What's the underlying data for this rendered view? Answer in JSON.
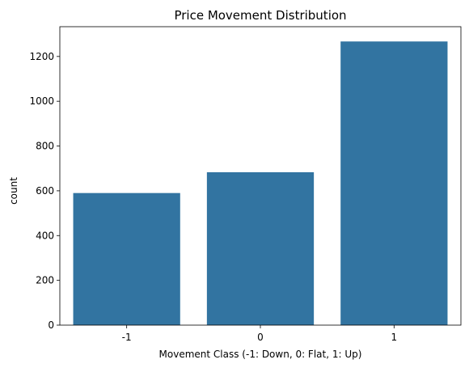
{
  "chart_data": {
    "type": "bar",
    "title": "Price Movement Distribution",
    "xlabel": "Movement Class (-1: Down, 0: Flat, 1: Up)",
    "ylabel": "count",
    "categories": [
      "-1",
      "0",
      "1"
    ],
    "values": [
      590,
      683,
      1267
    ],
    "ylim": [
      0,
      1333
    ],
    "yticks": [
      0,
      200,
      400,
      600,
      800,
      1000,
      1200
    ],
    "bar_color": "#3274a1",
    "grid": false,
    "legend": "none"
  }
}
